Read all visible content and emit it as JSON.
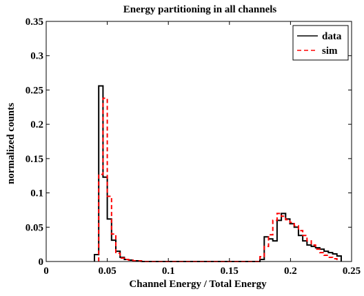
{
  "chart_data": {
    "type": "line",
    "title": "Energy partitioning in all channels",
    "xlabel": "Channel Energy / Total Energy",
    "ylabel": "normalized counts",
    "xlim": [
      0,
      0.25
    ],
    "ylim": [
      0,
      0.35
    ],
    "grid": false,
    "legend_position": "top-right",
    "x_ticks": [
      "0",
      "0.05",
      "0.1",
      "0.15",
      "0.2",
      "0.25"
    ],
    "y_ticks": [
      "0",
      "0.05",
      "0.1",
      "0.15",
      "0.2",
      "0.25",
      "0.3",
      "0.35"
    ],
    "series": [
      {
        "name": "data",
        "color": "#000000",
        "style": "solid",
        "step_edges": [
          0.0395,
          0.043,
          0.0465,
          0.05,
          0.0535,
          0.057,
          0.0605,
          0.064,
          0.0675,
          0.071,
          0.0745,
          0.078,
          0.175,
          0.1785,
          0.182,
          0.1855,
          0.189,
          0.1925,
          0.196,
          0.1995,
          0.203,
          0.2065,
          0.21,
          0.2135,
          0.217,
          0.2205,
          0.224,
          0.2275,
          0.231,
          0.2345,
          0.238,
          0.2415
        ],
        "values": [
          0.01,
          0.256,
          0.123,
          0.062,
          0.031,
          0.015,
          0.006,
          0.003,
          0.002,
          0.001,
          0.001,
          0.0,
          0.003,
          0.036,
          0.033,
          0.03,
          0.06,
          0.07,
          0.062,
          0.055,
          0.05,
          0.038,
          0.03,
          0.024,
          0.022,
          0.02,
          0.018,
          0.015,
          0.013,
          0.011,
          0.008
        ]
      },
      {
        "name": "sim",
        "color": "#ff0000",
        "style": "dashed",
        "step_edges": [
          0.043,
          0.0465,
          0.05,
          0.0535,
          0.057,
          0.0605,
          0.064,
          0.0675,
          0.071,
          0.0745,
          0.078,
          0.175,
          0.1785,
          0.182,
          0.1855,
          0.189,
          0.1925,
          0.196,
          0.1995,
          0.203,
          0.2065,
          0.21,
          0.2135,
          0.217,
          0.2205,
          0.224,
          0.2275,
          0.231,
          0.2345,
          0.238
        ],
        "values": [
          0.127,
          0.238,
          0.095,
          0.04,
          0.012,
          0.005,
          0.003,
          0.002,
          0.001,
          0.001,
          0.0,
          0.007,
          0.022,
          0.039,
          0.06,
          0.07,
          0.066,
          0.061,
          0.057,
          0.052,
          0.045,
          0.038,
          0.03,
          0.024,
          0.018,
          0.013,
          0.009,
          0.006,
          0.004
        ]
      }
    ]
  }
}
